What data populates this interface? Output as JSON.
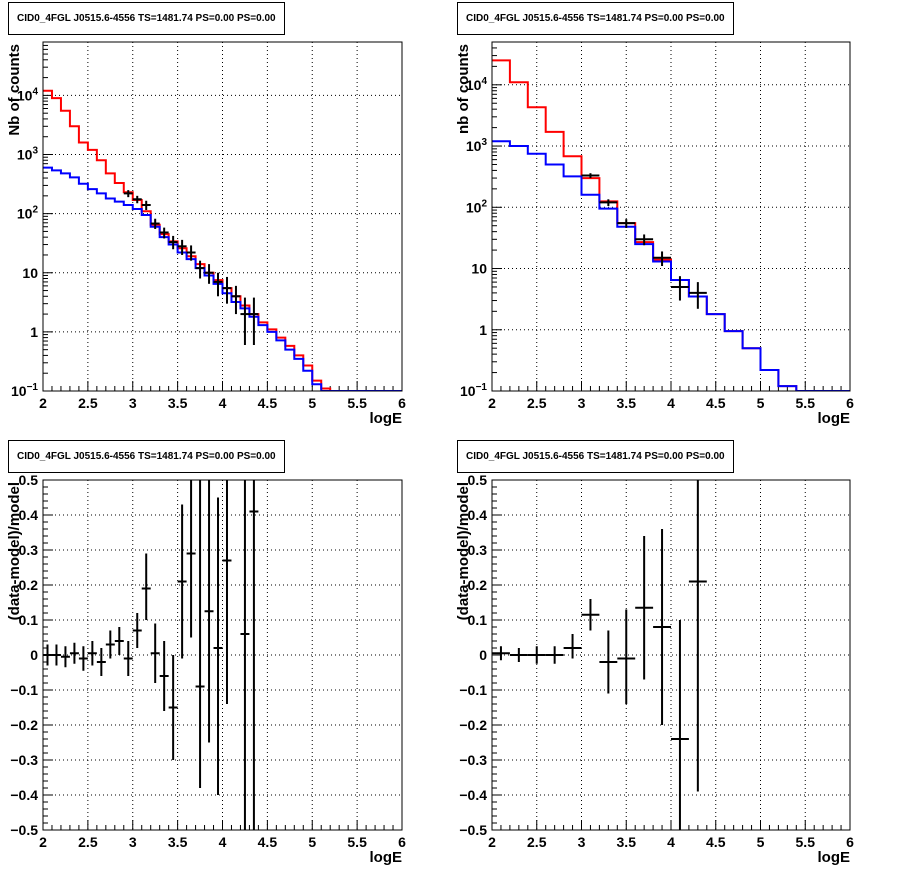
{
  "chart_data": [
    {
      "type": "line",
      "title": "CID0_4FGL J0515.6-4556 TS=1481.74 PS=0.00 PS=0.00",
      "xlabel": "logE",
      "ylabel": "Nb of counts",
      "xlim": [
        2,
        6
      ],
      "ylim": [
        0.1,
        80000
      ],
      "yscale": "log",
      "grid": true,
      "xticks": [
        "2",
        "2.5",
        "3",
        "3.5",
        "4",
        "4.5",
        "5",
        "5.5",
        "6"
      ],
      "yticks": [
        "10^-1",
        "1",
        "10",
        "10^2",
        "10^3",
        "10^4"
      ],
      "series": [
        {
          "style": "step",
          "color": "#ff0000",
          "bin_width": 0.1,
          "x": [
            2.05,
            2.15,
            2.25,
            2.35,
            2.45,
            2.55,
            2.65,
            2.75,
            2.85,
            2.95,
            3.05,
            3.15,
            3.25,
            3.35,
            3.45,
            3.55,
            3.65,
            3.75,
            3.85,
            3.95,
            4.05,
            4.15,
            4.25,
            4.35,
            4.45,
            4.55,
            4.65,
            4.75,
            4.85,
            4.95,
            5.05,
            5.15,
            5.25,
            5.35,
            5.45,
            5.55,
            5.65,
            5.75,
            5.85,
            5.95
          ],
          "y": [
            12000,
            9000,
            5500,
            3000,
            1600,
            1200,
            800,
            480,
            330,
            230,
            170,
            110,
            65,
            45,
            34,
            26,
            19,
            14,
            10,
            7.5,
            5.5,
            4,
            2.8,
            2,
            1.45,
            1.1,
            0.8,
            0.58,
            0.4,
            0.27,
            0.15,
            0.11,
            0.1,
            0.1,
            0.1,
            0.1,
            0.1,
            0.1,
            0.1,
            0.1
          ]
        },
        {
          "style": "step",
          "color": "#0000ff",
          "bin_width": 0.1,
          "x": [
            2.05,
            2.15,
            2.25,
            2.35,
            2.45,
            2.55,
            2.65,
            2.75,
            2.85,
            2.95,
            3.05,
            3.15,
            3.25,
            3.35,
            3.45,
            3.55,
            3.65,
            3.75,
            3.85,
            3.95,
            4.05,
            4.15,
            4.25,
            4.35,
            4.45,
            4.55,
            4.65,
            4.75,
            4.85,
            4.95,
            5.05,
            5.15,
            5.25,
            5.35,
            5.45,
            5.55,
            5.65,
            5.75,
            5.85,
            5.95
          ],
          "y": [
            600,
            540,
            480,
            410,
            320,
            260,
            220,
            180,
            160,
            140,
            120,
            95,
            60,
            40,
            30,
            22,
            17,
            12,
            9,
            6.5,
            4.5,
            3.2,
            2.5,
            1.8,
            1.3,
            1.0,
            0.72,
            0.5,
            0.35,
            0.22,
            0.13,
            0.1,
            0.1,
            0.1,
            0.1,
            0.1,
            0.1,
            0.1,
            0.1,
            0.1
          ]
        },
        {
          "style": "errorbar",
          "color": "#000000",
          "xerr": 0.05,
          "x": [
            2.95,
            3.05,
            3.15,
            3.25,
            3.35,
            3.45,
            3.55,
            3.65,
            3.75,
            3.85,
            3.95,
            4.05,
            4.15,
            4.25,
            4.35
          ],
          "y": [
            220,
            175,
            140,
            68,
            48,
            33,
            28,
            22,
            12,
            10,
            7,
            5.5,
            4,
            2,
            2
          ],
          "ylo": [
            190,
            150,
            115,
            55,
            38,
            25,
            20,
            16,
            8,
            6.5,
            4,
            3,
            2,
            0.6,
            0.6
          ],
          "yhi": [
            250,
            200,
            165,
            82,
            58,
            42,
            36,
            29,
            16,
            14,
            10,
            8.5,
            6,
            3.8,
            3.8
          ]
        }
      ]
    },
    {
      "type": "line",
      "title": "CID0_4FGL J0515.6-4556 TS=1481.74 PS=0.00 PS=0.00",
      "xlabel": "logE",
      "ylabel": "nb of counts",
      "xlim": [
        2,
        6
      ],
      "ylim": [
        0.1,
        50000
      ],
      "yscale": "log",
      "grid": true,
      "xticks": [
        "2",
        "2.5",
        "3",
        "3.5",
        "4",
        "4.5",
        "5",
        "5.5",
        "6"
      ],
      "yticks": [
        "10^-1",
        "1",
        "10",
        "10^2",
        "10^3",
        "10^4"
      ],
      "series": [
        {
          "style": "step",
          "color": "#ff0000",
          "bin_width": 0.2,
          "x": [
            2.1,
            2.3,
            2.5,
            2.7,
            2.9,
            3.1,
            3.3,
            3.5,
            3.7,
            3.9,
            4.1,
            4.3,
            4.5,
            4.7,
            4.9,
            5.1,
            5.3,
            5.5,
            5.7,
            5.9
          ],
          "y": [
            25000,
            11000,
            4300,
            1700,
            680,
            300,
            125,
            55,
            27,
            14,
            6.5,
            3.5,
            1.8,
            0.95,
            0.5,
            0.22,
            0.12,
            0.1,
            0.1,
            0.1
          ]
        },
        {
          "style": "step",
          "color": "#0000ff",
          "bin_width": 0.2,
          "x": [
            2.1,
            2.3,
            2.5,
            2.7,
            2.9,
            3.1,
            3.3,
            3.5,
            3.7,
            3.9,
            4.1,
            4.3,
            4.5,
            4.7,
            4.9,
            5.1,
            5.3,
            5.5,
            5.7,
            5.9
          ],
          "y": [
            1200,
            1000,
            750,
            500,
            320,
            160,
            95,
            48,
            25,
            13,
            6.5,
            3.5,
            1.8,
            0.95,
            0.5,
            0.22,
            0.12,
            0.1,
            0.1,
            0.1
          ]
        },
        {
          "style": "errorbar",
          "color": "#000000",
          "xerr": 0.1,
          "x": [
            3.1,
            3.3,
            3.5,
            3.7,
            3.9,
            4.1,
            4.3
          ],
          "y": [
            330,
            120,
            55,
            30,
            15,
            5,
            4
          ],
          "ylo": [
            300,
            105,
            46,
            24,
            11,
            3,
            2.2
          ],
          "yhi": [
            360,
            135,
            64,
            36,
            19,
            7.5,
            6
          ]
        }
      ]
    },
    {
      "type": "scatter",
      "title": "CID0_4FGL J0515.6-4556 TS=1481.74 PS=0.00 PS=0.00",
      "xlabel": "logE",
      "ylabel": "(data-model)/model",
      "xlim": [
        2,
        6
      ],
      "ylim": [
        -0.5,
        0.5
      ],
      "grid": true,
      "xticks": [
        "2",
        "2.5",
        "3",
        "3.5",
        "4",
        "4.5",
        "5",
        "5.5",
        "6"
      ],
      "yticks": [
        "−0.5",
        "−0.4",
        "−0.3",
        "−0.2",
        "−0.1",
        "0",
        "0.1",
        "0.2",
        "0.3",
        "0.4",
        "0.5"
      ],
      "series": [
        {
          "style": "errorbar",
          "color": "#000000",
          "xerr": 0.05,
          "x": [
            2.05,
            2.15,
            2.25,
            2.35,
            2.45,
            2.55,
            2.65,
            2.75,
            2.85,
            2.95,
            3.05,
            3.15,
            3.25,
            3.35,
            3.45,
            3.55,
            3.65,
            3.75,
            3.85,
            3.95,
            4.05,
            4.25,
            4.35
          ],
          "y": [
            0.0,
            0.0,
            -0.005,
            0.005,
            -0.01,
            0.005,
            -0.02,
            0.03,
            0.04,
            -0.01,
            0.07,
            0.19,
            0.005,
            -0.06,
            -0.15,
            0.21,
            0.29,
            -0.09,
            0.125,
            0.02,
            0.27,
            0.06,
            0.41
          ],
          "ylo": [
            -0.03,
            -0.03,
            -0.035,
            -0.025,
            -0.045,
            -0.03,
            -0.06,
            -0.01,
            0.0,
            -0.06,
            0.02,
            0.1,
            -0.08,
            -0.16,
            -0.3,
            -0.01,
            0.05,
            -0.38,
            -0.25,
            -0.4,
            -0.14,
            -0.5,
            -0.5
          ],
          "yhi": [
            0.03,
            0.03,
            0.025,
            0.035,
            0.025,
            0.04,
            0.02,
            0.07,
            0.08,
            0.04,
            0.12,
            0.29,
            0.09,
            0.04,
            0.0,
            0.43,
            0.5,
            0.5,
            0.5,
            0.45,
            0.5,
            0.5,
            0.5
          ]
        }
      ]
    },
    {
      "type": "scatter",
      "title": "CID0_4FGL J0515.6-4556 TS=1481.74 PS=0.00 PS=0.00",
      "xlabel": "logE",
      "ylabel": "(data-model)/model",
      "xlim": [
        2,
        6
      ],
      "ylim": [
        -0.5,
        0.5
      ],
      "grid": true,
      "xticks": [
        "2",
        "2.5",
        "3",
        "3.5",
        "4",
        "4.5",
        "5",
        "5.5",
        "6"
      ],
      "yticks": [
        "−0.5",
        "−0.4",
        "−0.3",
        "−0.2",
        "−0.1",
        "0",
        "0.1",
        "0.2",
        "0.3",
        "0.4",
        "0.5"
      ],
      "series": [
        {
          "style": "errorbar",
          "color": "#000000",
          "xerr": 0.1,
          "x": [
            2.1,
            2.3,
            2.5,
            2.7,
            2.9,
            3.1,
            3.3,
            3.5,
            3.7,
            3.9,
            4.1,
            4.3
          ],
          "y": [
            0.005,
            0.0,
            0.0,
            0.0,
            0.02,
            0.115,
            -0.02,
            -0.01,
            0.135,
            0.08,
            -0.24,
            0.21
          ],
          "ylo": [
            -0.015,
            -0.02,
            -0.025,
            -0.025,
            -0.01,
            0.07,
            -0.11,
            -0.14,
            -0.07,
            -0.2,
            -0.5,
            -0.39
          ],
          "yhi": [
            0.025,
            0.02,
            0.025,
            0.025,
            0.06,
            0.16,
            0.07,
            0.13,
            0.34,
            0.36,
            0.1,
            0.5
          ]
        }
      ]
    }
  ]
}
